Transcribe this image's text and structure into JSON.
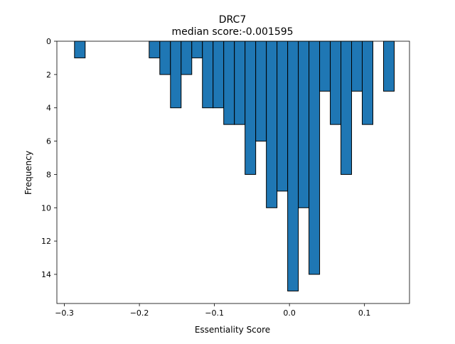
{
  "chart_data": {
    "type": "bar",
    "title": "DRC7",
    "subtitle": "median score:-0.001595",
    "xlabel": "Essentiality Score",
    "ylabel": "Frequency",
    "xlim": [
      -0.31,
      0.16
    ],
    "ylim": [
      15.75,
      0
    ],
    "y_inverted": true,
    "grid": false,
    "bar_color": "#1f77b4",
    "edge_color": "#000000",
    "bin_width": 0.0142,
    "xticks": [
      {
        "value": -0.3,
        "label": "−0.3"
      },
      {
        "value": -0.2,
        "label": "−0.2"
      },
      {
        "value": -0.1,
        "label": "−0.1"
      },
      {
        "value": 0.0,
        "label": "0.0"
      },
      {
        "value": 0.1,
        "label": "0.1"
      }
    ],
    "yticks": [
      {
        "value": 0,
        "label": "0"
      },
      {
        "value": 2,
        "label": "2"
      },
      {
        "value": 4,
        "label": "4"
      },
      {
        "value": 6,
        "label": "6"
      },
      {
        "value": 8,
        "label": "8"
      },
      {
        "value": 10,
        "label": "10"
      },
      {
        "value": 12,
        "label": "12"
      },
      {
        "value": 14,
        "label": "14"
      }
    ],
    "bins": [
      {
        "x": -0.2794,
        "count": 1
      },
      {
        "x": -0.1799,
        "count": 1
      },
      {
        "x": -0.1657,
        "count": 2
      },
      {
        "x": -0.1515,
        "count": 4
      },
      {
        "x": -0.1373,
        "count": 2
      },
      {
        "x": -0.1231,
        "count": 1
      },
      {
        "x": -0.1089,
        "count": 4
      },
      {
        "x": -0.0947,
        "count": 4
      },
      {
        "x": -0.0805,
        "count": 5
      },
      {
        "x": -0.0663,
        "count": 5
      },
      {
        "x": -0.0521,
        "count": 8
      },
      {
        "x": -0.0379,
        "count": 6
      },
      {
        "x": -0.0237,
        "count": 10
      },
      {
        "x": -0.0095,
        "count": 9
      },
      {
        "x": 0.0047,
        "count": 15
      },
      {
        "x": 0.0189,
        "count": 10
      },
      {
        "x": 0.0331,
        "count": 14
      },
      {
        "x": 0.0473,
        "count": 3
      },
      {
        "x": 0.0615,
        "count": 5
      },
      {
        "x": 0.0757,
        "count": 8
      },
      {
        "x": 0.0899,
        "count": 3
      },
      {
        "x": 0.1041,
        "count": 5
      },
      {
        "x": 0.1325,
        "count": 3
      }
    ]
  }
}
